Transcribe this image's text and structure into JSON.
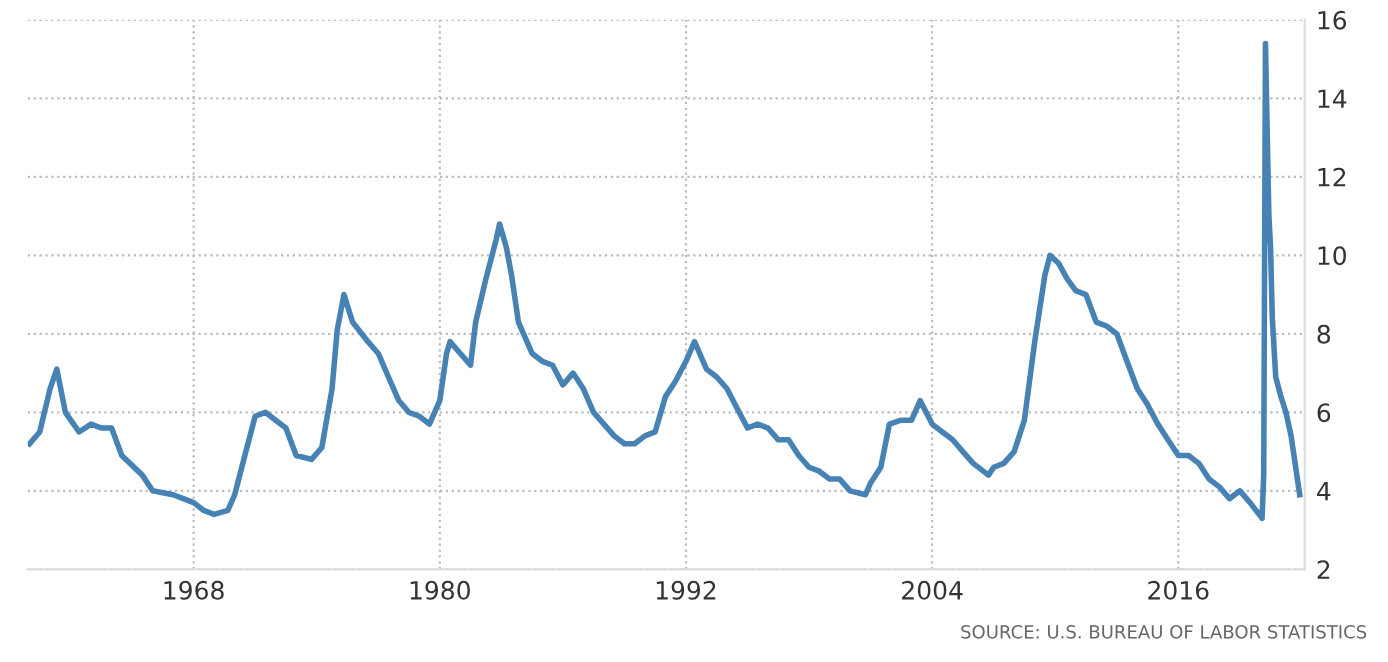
{
  "chart_data": {
    "type": "line",
    "x": [
      "1960-01",
      "1960-07",
      "1961-01",
      "1961-05",
      "1961-10",
      "1962-06",
      "1963-01",
      "1963-07",
      "1964-01",
      "1964-07",
      "1965-07",
      "1966-01",
      "1967-01",
      "1967-07",
      "1968-01",
      "1968-07",
      "1969-01",
      "1969-09",
      "1970-01",
      "1970-07",
      "1971-01",
      "1971-07",
      "1972-01",
      "1972-07",
      "1973-01",
      "1973-10",
      "1974-04",
      "1974-10",
      "1975-01",
      "1975-05",
      "1975-10",
      "1976-07",
      "1977-01",
      "1977-07",
      "1978-01",
      "1978-07",
      "1979-01",
      "1979-07",
      "1980-01",
      "1980-05",
      "1980-07",
      "1981-01",
      "1981-07",
      "1981-10",
      "1982-04",
      "1982-10",
      "1982-12",
      "1983-04",
      "1983-07",
      "1983-11",
      "1984-07",
      "1985-01",
      "1985-07",
      "1986-01",
      "1986-07",
      "1987-01",
      "1987-07",
      "1988-01",
      "1988-07",
      "1989-01",
      "1989-07",
      "1990-01",
      "1990-07",
      "1991-01",
      "1991-07",
      "1992-01",
      "1992-06",
      "1993-01",
      "1993-07",
      "1994-01",
      "1994-07",
      "1995-01",
      "1995-07",
      "1996-01",
      "1996-07",
      "1997-01",
      "1997-07",
      "1998-01",
      "1998-07",
      "1999-01",
      "1999-07",
      "2000-01",
      "2000-10",
      "2001-01",
      "2001-07",
      "2001-12",
      "2002-07",
      "2003-01",
      "2003-06",
      "2004-01",
      "2004-07",
      "2005-01",
      "2005-07",
      "2006-01",
      "2006-10",
      "2007-01",
      "2007-07",
      "2008-01",
      "2008-07",
      "2009-01",
      "2009-07",
      "2009-10",
      "2010-03",
      "2010-08",
      "2011-01",
      "2011-07",
      "2012-01",
      "2012-07",
      "2013-01",
      "2013-07",
      "2014-01",
      "2014-07",
      "2015-01",
      "2015-07",
      "2016-01",
      "2016-07",
      "2017-01",
      "2017-07",
      "2018-01",
      "2018-07",
      "2019-01",
      "2019-07",
      "2020-02",
      "2020-03",
      "2020-04",
      "2020-05",
      "2020-06",
      "2020-07",
      "2020-08",
      "2020-10",
      "2021-01",
      "2021-04",
      "2021-07",
      "2021-09",
      "2021-11",
      "2021-12"
    ],
    "series": [
      {
        "color": "#4682b4",
        "values": [
          5.2,
          5.5,
          6.6,
          7.1,
          6.0,
          5.5,
          5.7,
          5.6,
          5.6,
          4.9,
          4.4,
          4.0,
          3.9,
          3.8,
          3.7,
          3.5,
          3.4,
          3.5,
          3.9,
          4.9,
          5.9,
          6.0,
          5.8,
          5.6,
          4.9,
          4.8,
          5.1,
          6.6,
          8.1,
          9.0,
          8.3,
          7.8,
          7.5,
          6.9,
          6.3,
          6.0,
          5.9,
          5.7,
          6.3,
          7.5,
          7.8,
          7.5,
          7.2,
          8.3,
          9.4,
          10.4,
          10.8,
          10.2,
          9.5,
          8.3,
          7.5,
          7.3,
          7.2,
          6.7,
          7.0,
          6.6,
          6.0,
          5.7,
          5.4,
          5.2,
          5.2,
          5.4,
          5.5,
          6.4,
          6.8,
          7.3,
          7.8,
          7.1,
          6.9,
          6.6,
          6.1,
          5.6,
          5.7,
          5.6,
          5.3,
          5.3,
          4.9,
          4.6,
          4.5,
          4.3,
          4.3,
          4.0,
          3.9,
          4.2,
          4.6,
          5.7,
          5.8,
          5.8,
          6.3,
          5.7,
          5.5,
          5.3,
          5.0,
          4.7,
          4.4,
          4.6,
          4.7,
          5.0,
          5.8,
          7.8,
          9.5,
          10.0,
          9.8,
          9.4,
          9.1,
          9.0,
          8.3,
          8.2,
          8.0,
          7.3,
          6.6,
          6.2,
          5.7,
          5.3,
          4.9,
          4.9,
          4.7,
          4.3,
          4.1,
          3.8,
          4.0,
          3.7,
          3.3,
          4.4,
          15.4,
          13.2,
          11.0,
          10.2,
          8.4,
          6.9,
          6.4,
          6.0,
          5.4,
          4.8,
          4.2,
          3.9
        ]
      }
    ],
    "xlim": [
      "1959-12",
      "2022-03"
    ],
    "xticks": [
      "1968",
      "1980",
      "1992",
      "2004",
      "2016"
    ],
    "ylim": [
      2,
      16
    ],
    "yticks": [
      2,
      4,
      6,
      8,
      10,
      12,
      14,
      16
    ],
    "grid": true,
    "line_style": "solid",
    "annotations": [
      "SOURCE: U.S. BUREAU OF LABOR STATISTICS"
    ]
  }
}
